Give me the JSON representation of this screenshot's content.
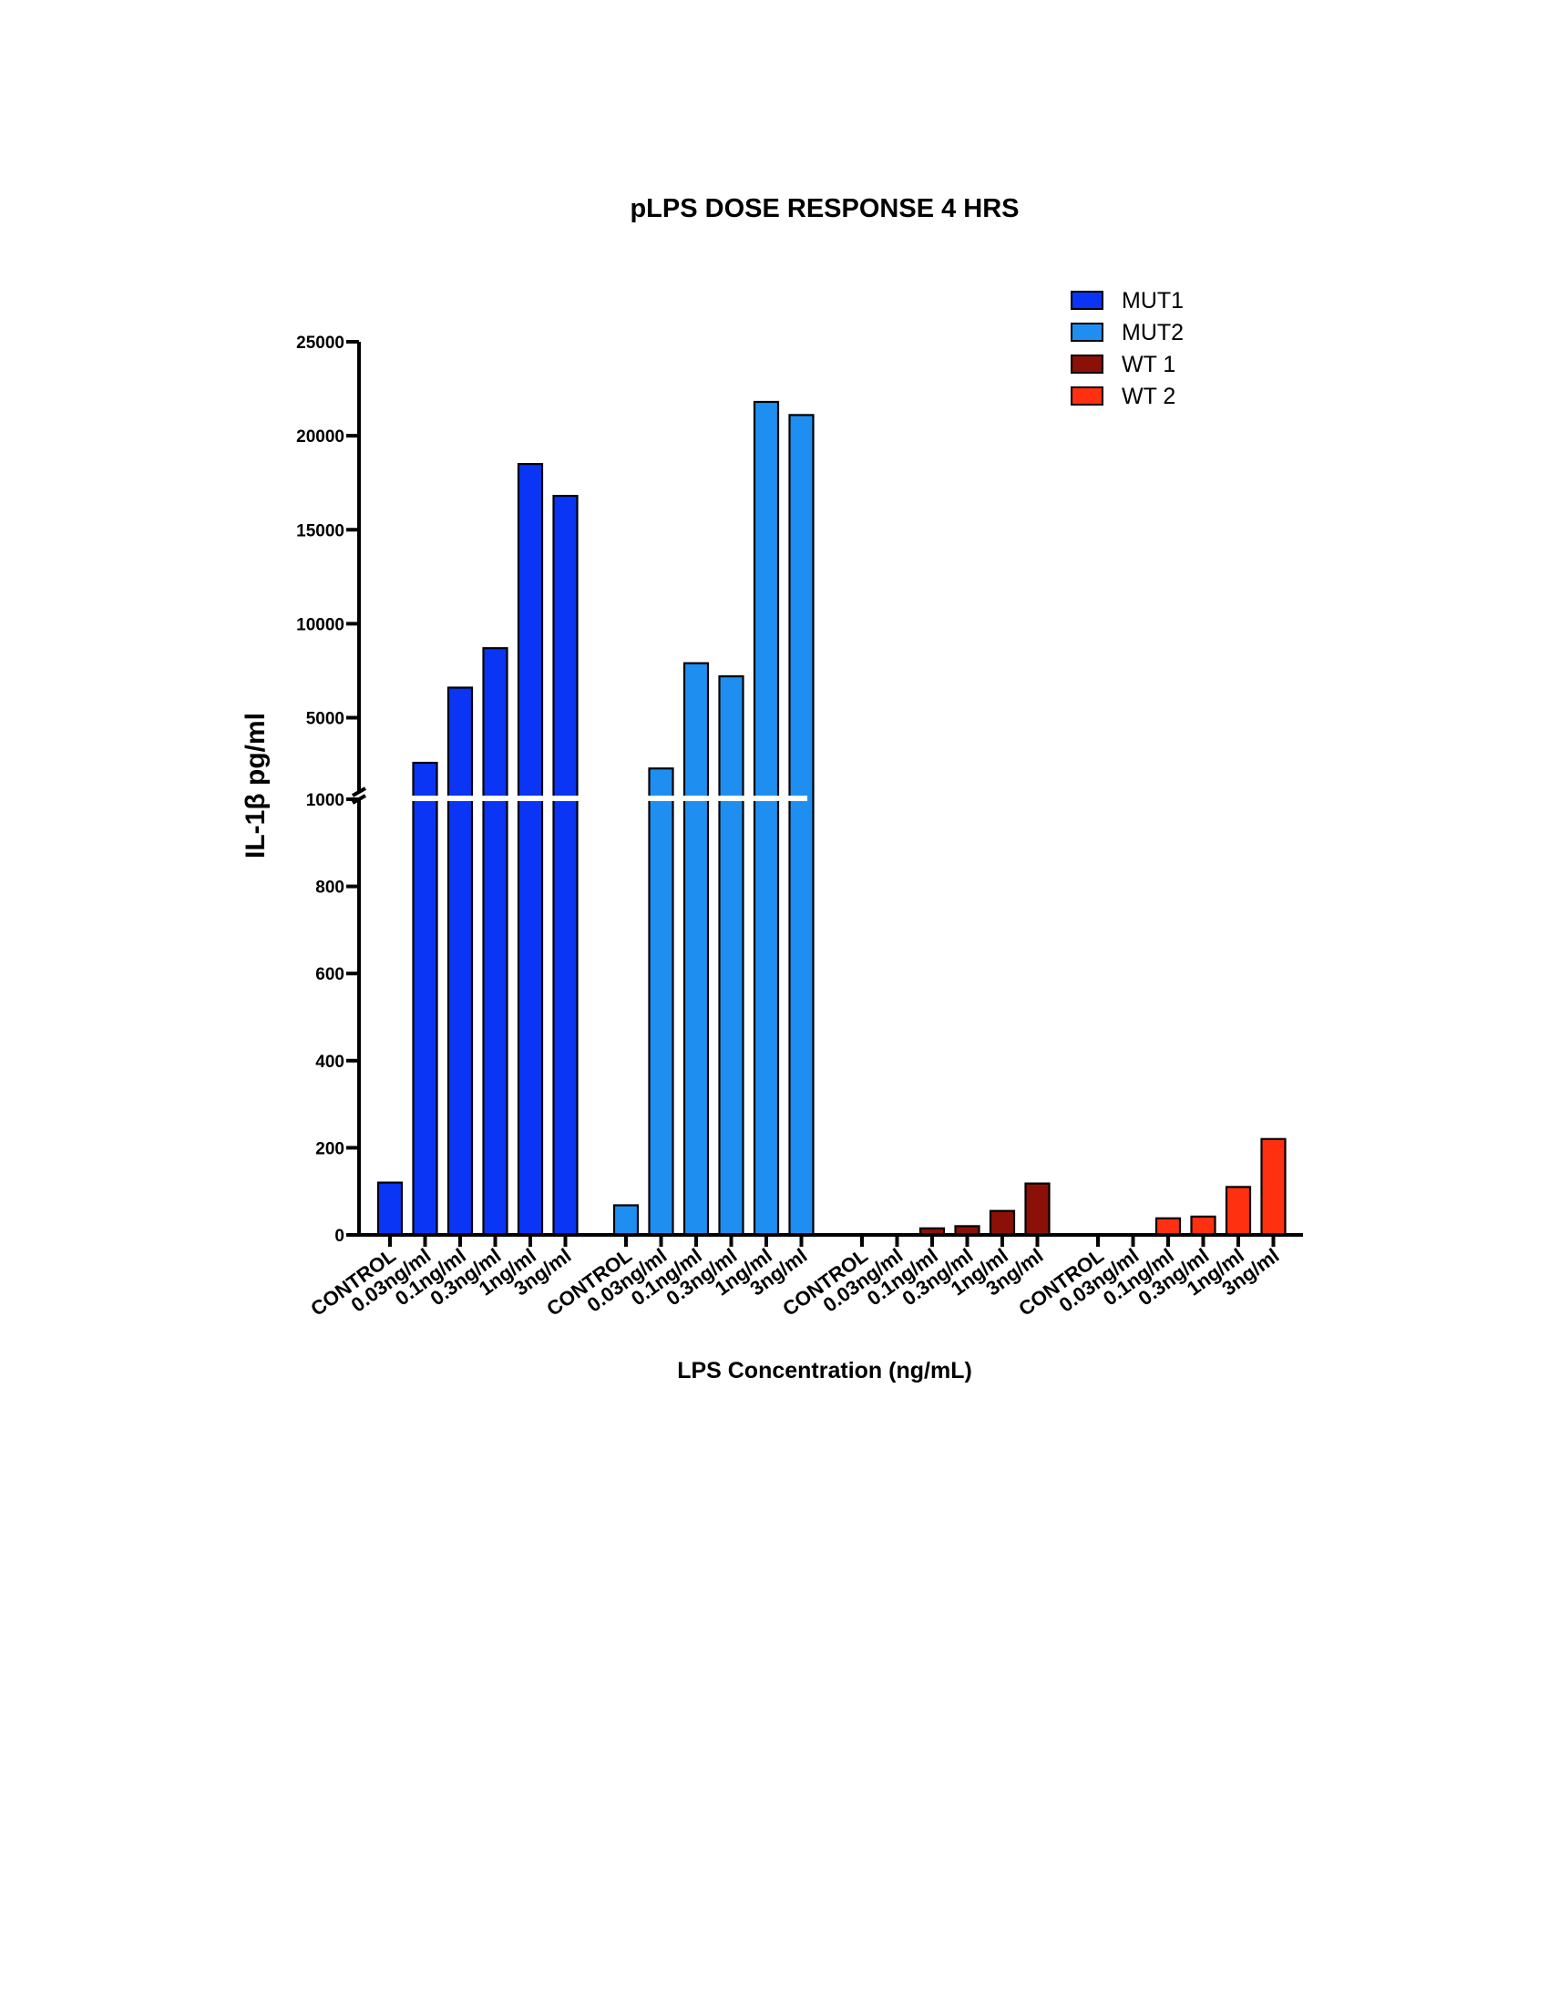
{
  "chart_data": {
    "type": "bar",
    "title": "pLPS DOSE RESPONSE 4 HRS",
    "xlabel": "LPS Concentration (ng/mL)",
    "ylabel": "IL-1β pg/ml",
    "y_axis": {
      "segments": [
        {
          "range": [
            0,
            1000
          ],
          "ticks": [
            0,
            200,
            400,
            600,
            800,
            1000
          ],
          "tick_labels": [
            "0",
            "200",
            "400",
            "600",
            "800",
            "1000"
          ]
        },
        {
          "range": [
            1000,
            25000
          ],
          "ticks": [
            5000,
            10000,
            15000,
            20000,
            25000
          ],
          "tick_labels": [
            "5000",
            "10000",
            "15000",
            "20000",
            "25000"
          ]
        }
      ],
      "break_at": 1000
    },
    "grid": false,
    "legend_position": "top-right",
    "categories": [
      "CONTROL",
      "0.03ng/ml",
      "0.1ng/ml",
      "0.3ng/ml",
      "1ng/ml",
      "3ng/ml"
    ],
    "series": [
      {
        "name": "MUT1",
        "color": "#0A35F5",
        "values": [
          120,
          2600,
          6600,
          8700,
          18500,
          16800
        ]
      },
      {
        "name": "MUT2",
        "color": "#1E8FF0",
        "values": [
          68,
          2300,
          7900,
          7200,
          21800,
          21100
        ]
      },
      {
        "name": "WT 1",
        "color": "#8B1008",
        "values": [
          0,
          0,
          15,
          20,
          55,
          118
        ]
      },
      {
        "name": "WT 2",
        "color": "#FF3010",
        "values": [
          0,
          0,
          38,
          42,
          110,
          220
        ]
      }
    ]
  }
}
